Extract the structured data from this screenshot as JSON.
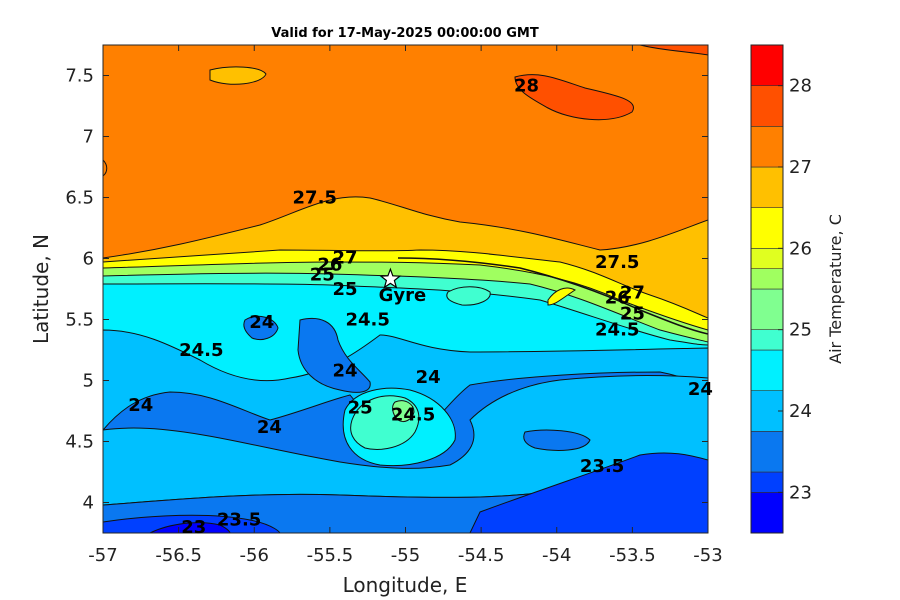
{
  "chart_data": {
    "type": "contour",
    "title": "Valid for 17-May-2025 00:00:00 GMT",
    "xlabel": "Longitude, E",
    "ylabel": "Latitude, N",
    "xlim": [
      -57,
      -53
    ],
    "ylim": [
      3.75,
      7.75
    ],
    "xticks": [
      "-57",
      "-56.5",
      "-56",
      "-55.5",
      "-55",
      "-54.5",
      "-54",
      "-53.5",
      "-53"
    ],
    "yticks": [
      "4",
      "4.5",
      "5",
      "5.5",
      "6",
      "6.5",
      "7",
      "7.5"
    ],
    "colorbar": {
      "label": "Air Temperature, C",
      "range": [
        22.5,
        28.5
      ],
      "ticks": [
        "23",
        "24",
        "25",
        "26",
        "27",
        "28"
      ],
      "levels": [
        22.5,
        23,
        23.25,
        23.75,
        24.25,
        24.75,
        25,
        25.5,
        25.75,
        26,
        26.5,
        27,
        27.5,
        28,
        28.5
      ],
      "colors": [
        "#0000ff",
        "#0040ff",
        "#0a78f0",
        "#00c0ff",
        "#00f0ff",
        "#40ffd0",
        "#80ff90",
        "#a0ff60",
        "#e0ff20",
        "#ffff00",
        "#ffc000",
        "#ff8000",
        "#ff5000",
        "#ff0000"
      ]
    },
    "contour_labels": [
      {
        "text": "27.5",
        "x": -55.6,
        "y": 6.5
      },
      {
        "text": "27.5",
        "x": -53.6,
        "y": 5.97
      },
      {
        "text": "28",
        "x": -54.2,
        "y": 7.42
      },
      {
        "text": "27",
        "x": -55.4,
        "y": 6.01
      },
      {
        "text": "26",
        "x": -55.5,
        "y": 5.95
      },
      {
        "text": "25",
        "x": -55.55,
        "y": 5.87
      },
      {
        "text": "25",
        "x": -55.4,
        "y": 5.75
      },
      {
        "text": "27",
        "x": -53.5,
        "y": 5.72
      },
      {
        "text": "26",
        "x": -53.6,
        "y": 5.68
      },
      {
        "text": "25",
        "x": -53.5,
        "y": 5.55
      },
      {
        "text": "24.5",
        "x": -53.6,
        "y": 5.42
      },
      {
        "text": "24",
        "x": -55.95,
        "y": 5.48
      },
      {
        "text": "24.5",
        "x": -56.35,
        "y": 5.25
      },
      {
        "text": "24.5",
        "x": -55.25,
        "y": 5.5
      },
      {
        "text": "24",
        "x": -55.4,
        "y": 5.08
      },
      {
        "text": "24",
        "x": -54.85,
        "y": 5.03
      },
      {
        "text": "24",
        "x": -53.05,
        "y": 4.93
      },
      {
        "text": "25",
        "x": -55.3,
        "y": 4.78
      },
      {
        "text": "24.5",
        "x": -54.95,
        "y": 4.72
      },
      {
        "text": "24",
        "x": -56.75,
        "y": 4.8
      },
      {
        "text": "24",
        "x": -55.9,
        "y": 4.62
      },
      {
        "text": "23.5",
        "x": -53.7,
        "y": 4.3
      },
      {
        "text": "23.5",
        "x": -56.1,
        "y": 3.86
      },
      {
        "text": "23",
        "x": -56.4,
        "y": 3.8
      }
    ],
    "marker": {
      "label": "Gyre",
      "x": -55.1,
      "y": 5.83
    }
  }
}
